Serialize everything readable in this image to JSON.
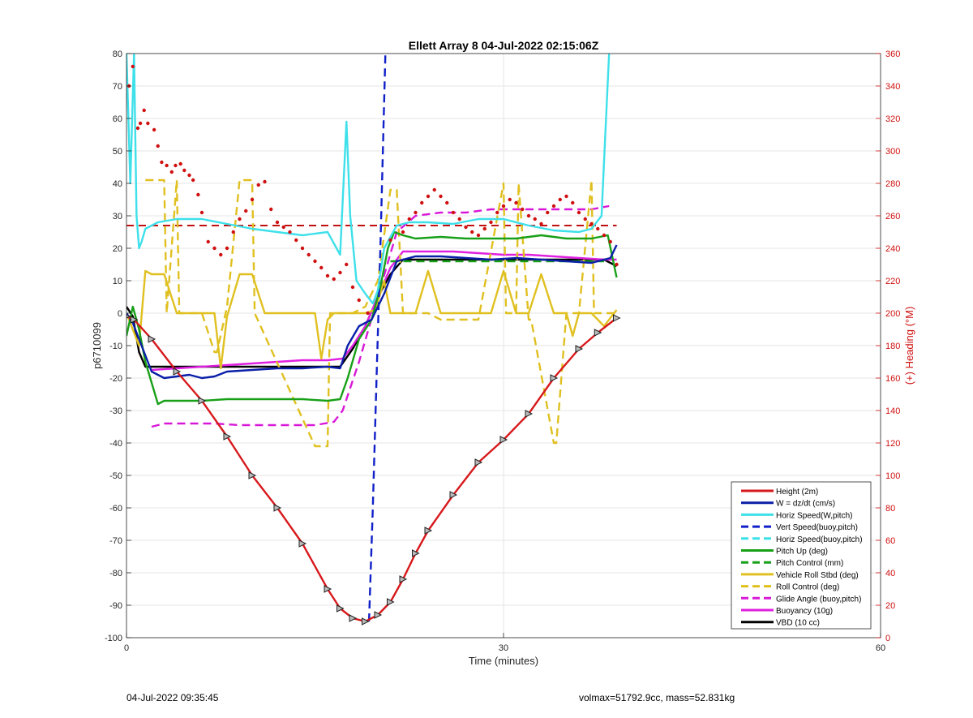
{
  "figure": {
    "footer_left": "04-Jul-2022 09:35:45",
    "footer_right": "volmax=51792.9cc, mass=52.831kg"
  },
  "chart_data": {
    "type": "line",
    "title": "Ellett Array 8 04-Jul-2022 02:15:06Z",
    "xlabel": "Time (minutes)",
    "ylabel": "p6710099",
    "ylabel_right": "(+) Heading (°M)",
    "xlim": [
      0,
      60
    ],
    "ylim": [
      -100,
      80
    ],
    "ylim_right": [
      0,
      360
    ],
    "xticks": [
      0,
      30,
      60
    ],
    "yticks": [
      -100,
      -90,
      -80,
      -70,
      -60,
      -50,
      -40,
      -30,
      -20,
      -10,
      0,
      10,
      20,
      30,
      40,
      50,
      60,
      70,
      80
    ],
    "yticks_right": [
      0,
      20,
      40,
      60,
      80,
      100,
      120,
      140,
      160,
      180,
      200,
      220,
      240,
      260,
      280,
      300,
      320,
      340,
      360
    ],
    "grid": true,
    "legend_position": "bottom-right",
    "colors": {
      "height": "#d7191c",
      "w": "#0a1fa8",
      "horiz": "#3ee0ea",
      "vert_buoy": "#1020c8",
      "horiz_buoy": "#3ee0ea",
      "pitch": "#18a018",
      "pitch_ctrl": "#18a018",
      "roll": "#e0c020",
      "roll_ctrl": "#e0c020",
      "glide": "#d818d8",
      "buoyancy": "#e020e0",
      "vbd": "#000000",
      "heading": "#d01010",
      "right_axis": "#d01010"
    },
    "series": [
      {
        "name": "Height (2m)",
        "color": "#d7191c",
        "style": "solid",
        "markers": "triangle",
        "x": [
          0,
          0.6,
          2,
          4,
          6,
          8,
          10,
          12,
          14,
          16,
          17,
          18,
          19,
          20,
          21,
          22,
          23,
          24,
          26,
          28,
          30,
          32,
          34,
          36,
          37.5,
          39
        ],
        "y": [
          -1,
          -2,
          -8,
          -18,
          -27,
          -38,
          -50,
          -60,
          -71,
          -85,
          -91,
          -94,
          -95,
          -93,
          -89,
          -82,
          -74,
          -67,
          -56,
          -46,
          -39,
          -31,
          -20,
          -11,
          -6,
          -1.5
        ]
      },
      {
        "name": "W = dz/dt (cm/s)",
        "color": "#0a1fa8",
        "style": "solid",
        "x": [
          0,
          0.5,
          1.2,
          2,
          3,
          4,
          5,
          6,
          7,
          8,
          10,
          12,
          14,
          16,
          17,
          17.6,
          18.5,
          19.5,
          20.5,
          21.5,
          23,
          25,
          27,
          29,
          31,
          33,
          35,
          37,
          38.5,
          39
        ],
        "y": [
          0,
          -3,
          -10,
          -18,
          -20,
          -19.5,
          -19,
          -20,
          -19.5,
          -18,
          -17.5,
          -17,
          -17,
          -16.5,
          -17,
          -10,
          -4,
          -2,
          6,
          16,
          17.5,
          17.5,
          17,
          16.5,
          17,
          16.5,
          16,
          15.5,
          17,
          21
        ]
      },
      {
        "name": "Horiz Speed(W,pitch)",
        "color": "#3ee0ea",
        "style": "solid",
        "x": [
          0,
          0.3,
          0.6,
          0.8,
          1.0,
          1.2,
          1.5,
          2.5,
          4,
          6,
          8,
          10,
          12,
          14,
          16,
          17,
          17.5,
          17.8,
          18.3,
          19,
          19.6,
          20,
          20.5,
          21.5,
          22.5,
          24,
          26,
          28,
          30,
          32,
          34,
          36,
          37,
          37.8,
          38.1,
          38.4
        ],
        "y": [
          80,
          40,
          80,
          30,
          20,
          22,
          26,
          28,
          29,
          29,
          27.5,
          26,
          25,
          24,
          25,
          18,
          59,
          30,
          10,
          6,
          3,
          7,
          20,
          27,
          28,
          28,
          27.5,
          29,
          29,
          27,
          25.5,
          25,
          26,
          30,
          55,
          80
        ]
      },
      {
        "name": "Vert Speed(buoy,pitch)",
        "color": "#1020c8",
        "style": "dashed",
        "x": [
          19.3,
          19.6,
          19.9,
          20.2,
          20.6
        ],
        "y": [
          -95,
          -60,
          -20,
          20,
          80
        ]
      },
      {
        "name": "Horiz Speed(buoy,pitch)",
        "color": "#3ee0ea",
        "style": "dashed",
        "x": [],
        "y": []
      },
      {
        "name": "Pitch Up (deg)",
        "color": "#18a018",
        "style": "solid",
        "x": [
          0,
          0.5,
          1,
          1.5,
          2.5,
          3,
          4,
          6,
          8,
          10,
          12,
          14,
          16,
          17,
          17.6,
          18.5,
          19.5,
          20.2,
          20.8,
          21.3,
          22,
          23,
          25,
          27,
          29,
          31,
          33,
          35,
          37,
          38.3,
          39
        ],
        "y": [
          -7,
          2,
          -5,
          -15,
          -28,
          -27,
          -27,
          -27,
          -26.5,
          -26.5,
          -26.5,
          -26.5,
          -27,
          -26.5,
          -20,
          -8,
          -2,
          8,
          20,
          25,
          24,
          23,
          23.5,
          23,
          23,
          23,
          24,
          23,
          23,
          24,
          11
        ]
      },
      {
        "name": "Pitch Control (mm)",
        "color": "#18a018",
        "style": "dashed",
        "x": [
          21,
          22,
          24,
          26,
          28,
          30,
          32,
          34,
          36,
          38
        ],
        "y": [
          16,
          16,
          16,
          16,
          16,
          16,
          16,
          16,
          16,
          16
        ]
      },
      {
        "name": "Vehicle Roll Stbd (deg)",
        "color": "#e0c020",
        "style": "solid",
        "x": [
          0,
          1,
          1.5,
          2,
          3,
          4,
          5,
          6,
          7,
          7.5,
          8,
          9,
          10,
          11,
          12,
          14,
          15,
          15.5,
          16,
          16.5,
          17,
          18,
          19,
          19.8,
          20.5,
          21,
          22,
          23,
          24,
          25,
          26,
          27,
          28,
          29,
          30,
          31,
          32,
          33,
          34,
          35,
          35.5,
          36,
          37,
          38,
          39
        ],
        "y": [
          0,
          -10,
          13,
          12,
          12,
          0,
          0,
          0,
          0,
          -17,
          -1,
          12,
          12,
          0,
          0,
          0,
          0,
          -14,
          -2,
          0,
          0,
          0,
          0,
          1,
          10,
          0,
          0,
          0,
          13,
          0,
          0,
          0,
          0,
          0,
          13,
          0,
          0,
          12,
          0,
          0,
          -7,
          0,
          0,
          -4,
          1
        ]
      },
      {
        "name": "Roll Control (deg)",
        "color": "#e0c020",
        "style": "dashed",
        "x": [
          1.5,
          2,
          3,
          3.2,
          4,
          4.2,
          6,
          7,
          7.2,
          8,
          9,
          10,
          10.2,
          15,
          15.2,
          16,
          16.2,
          17,
          18,
          19,
          20,
          21,
          21.5,
          22,
          23,
          24,
          25,
          26,
          28,
          30,
          30.2,
          31,
          31.2,
          32,
          32.2,
          34,
          34.2,
          35,
          35.2,
          36,
          37,
          37.2,
          38,
          39
        ],
        "y": [
          41,
          41,
          41,
          0,
          41,
          0,
          0,
          -12,
          -12,
          2,
          41,
          41,
          0,
          -41,
          -41,
          -41,
          0,
          0,
          0,
          2,
          10,
          38,
          38,
          0,
          0,
          0,
          -2,
          -2,
          -2,
          40,
          0,
          0,
          40,
          -2,
          -2,
          -40,
          -40,
          0,
          0,
          0,
          41,
          0,
          0,
          0
        ]
      },
      {
        "name": "Glide Angle (buoy,pitch)",
        "color": "#d818d8",
        "style": "dashed",
        "x": [
          2,
          3,
          5,
          7,
          9,
          11,
          13,
          15,
          16.5,
          17.2,
          18.5,
          20,
          21.5,
          23,
          25,
          27,
          29,
          31,
          33,
          35,
          37,
          38.4
        ],
        "y": [
          -35,
          -34,
          -34,
          -34,
          -34.5,
          -34.5,
          -34.5,
          -34.5,
          -33.5,
          -30,
          -15,
          5,
          25,
          30,
          31,
          31,
          32,
          32,
          32,
          32,
          32,
          33
        ]
      },
      {
        "name": "Buoyancy (10g)",
        "color": "#e020e0",
        "style": "solid",
        "x": [
          2,
          4,
          6,
          8,
          10,
          12,
          14,
          16,
          17.2,
          18,
          19,
          20,
          21,
          22,
          24,
          26,
          28,
          30,
          32,
          34,
          36,
          38,
          39
        ],
        "y": [
          -17.5,
          -17,
          -16.5,
          -16,
          -15.5,
          -15,
          -14.5,
          -14.5,
          -14,
          -10,
          -4,
          5,
          14,
          19,
          19,
          19,
          18.5,
          18,
          18,
          17.5,
          17,
          16.5,
          16.5
        ]
      },
      {
        "name": "VBD (10 cc)",
        "color": "#000000",
        "style": "solid",
        "x": [
          0,
          0.5,
          1,
          1.5,
          2,
          4,
          6,
          8,
          10,
          12,
          14,
          16,
          17,
          18,
          19,
          20,
          21,
          22,
          24,
          26,
          28,
          30,
          32,
          34,
          36,
          38,
          39
        ],
        "y": [
          2,
          -1,
          -12,
          -16.5,
          -16.5,
          -16.5,
          -16.5,
          -16.5,
          -16.5,
          -16.5,
          -16.5,
          -16.5,
          -16.5,
          -11,
          -4,
          5,
          12,
          16.5,
          16.5,
          16.5,
          16.5,
          16.5,
          16.5,
          16.5,
          16.5,
          16.5,
          14.5
        ]
      }
    ],
    "heading_reference": {
      "color": "#c01010",
      "style": "dashed",
      "value_deg": 254
    },
    "heading_points": {
      "axis": "right",
      "color": "#d01010",
      "x": [
        0.2,
        0.5,
        0.9,
        1.1,
        1.4,
        1.7,
        2.2,
        2.5,
        2.8,
        3.2,
        3.6,
        3.9,
        4.3,
        4.6,
        5,
        5.3,
        5.7,
        6,
        6.5,
        7,
        7.5,
        8,
        8.5,
        9,
        9.5,
        10,
        10.5,
        11,
        11.5,
        12,
        12.5,
        13,
        13.5,
        14,
        14.5,
        15,
        15.5,
        16,
        16.5,
        17,
        17.5,
        18,
        18.5,
        19.2,
        21,
        22,
        22.5,
        23,
        23.5,
        24,
        24.5,
        25,
        25.5,
        26,
        26.5,
        27,
        27.5,
        28,
        28.5,
        29,
        29.5,
        30,
        30.5,
        31,
        31.5,
        32,
        32.5,
        33,
        33.5,
        34,
        34.5,
        35,
        35.5,
        36,
        36.5,
        37,
        37.5,
        38,
        38.5,
        39
      ],
      "y": [
        340,
        352,
        314,
        317,
        325,
        317,
        313,
        303,
        293,
        291,
        287,
        291,
        292,
        288,
        285,
        282,
        273,
        262,
        244,
        240,
        236,
        240,
        250,
        258,
        263,
        270,
        279,
        281,
        264,
        256,
        253,
        250,
        245,
        240,
        236,
        232,
        228,
        223,
        221,
        225,
        230,
        216,
        208,
        200,
        245,
        250,
        258,
        262,
        268,
        272,
        276,
        272,
        268,
        262,
        258,
        253,
        250,
        248,
        252,
        256,
        262,
        266,
        270,
        268,
        264,
        260,
        258,
        255,
        262,
        266,
        270,
        272,
        268,
        262,
        258,
        255,
        252,
        248,
        244,
        230
      ]
    }
  }
}
